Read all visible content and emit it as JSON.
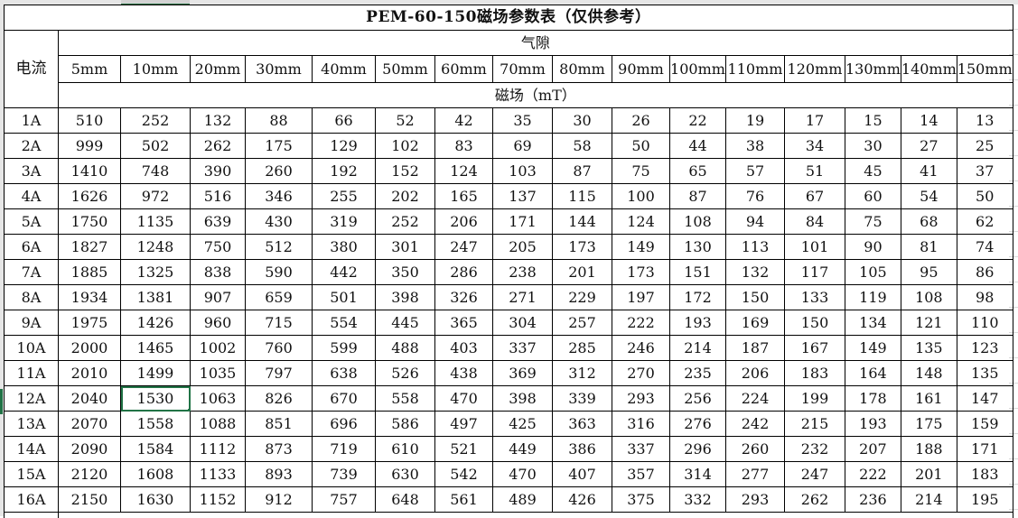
{
  "title": "PEM-60-150磁场参数表（仅供参考）",
  "current_label": "电流",
  "gap_label": "气隙",
  "field_label": "磁场（mT）",
  "selected_cell": {
    "row": "12A",
    "column": "10mm"
  },
  "accent_color": "#217346",
  "columns": [
    "5mm",
    "10mm",
    "20mm",
    "30mm",
    "40mm",
    "50mm",
    "60mm",
    "70mm",
    "80mm",
    "90mm",
    "100mm",
    "110mm",
    "120mm",
    "130mm",
    "140mm",
    "150mm"
  ],
  "rows": [
    {
      "label": "1A",
      "values": [
        510,
        252,
        132,
        88,
        66,
        52,
        42,
        35,
        30,
        26,
        22,
        19,
        17,
        15,
        14,
        13
      ]
    },
    {
      "label": "2A",
      "values": [
        999,
        502,
        262,
        175,
        129,
        102,
        83,
        69,
        58,
        50,
        44,
        38,
        34,
        30,
        27,
        25
      ]
    },
    {
      "label": "3A",
      "values": [
        1410,
        748,
        390,
        260,
        192,
        152,
        124,
        103,
        87,
        75,
        65,
        57,
        51,
        45,
        41,
        37
      ]
    },
    {
      "label": "4A",
      "values": [
        1626,
        972,
        516,
        346,
        255,
        202,
        165,
        137,
        115,
        100,
        87,
        76,
        67,
        60,
        54,
        50
      ]
    },
    {
      "label": "5A",
      "values": [
        1750,
        1135,
        639,
        430,
        319,
        252,
        206,
        171,
        144,
        124,
        108,
        94,
        84,
        75,
        68,
        62
      ]
    },
    {
      "label": "6A",
      "values": [
        1827,
        1248,
        750,
        512,
        380,
        301,
        247,
        205,
        173,
        149,
        130,
        113,
        101,
        90,
        81,
        74
      ]
    },
    {
      "label": "7A",
      "values": [
        1885,
        1325,
        838,
        590,
        442,
        350,
        286,
        238,
        201,
        173,
        151,
        132,
        117,
        105,
        95,
        86
      ]
    },
    {
      "label": "8A",
      "values": [
        1934,
        1381,
        907,
        659,
        501,
        398,
        326,
        271,
        229,
        197,
        172,
        150,
        133,
        119,
        108,
        98
      ]
    },
    {
      "label": "9A",
      "values": [
        1975,
        1426,
        960,
        715,
        554,
        445,
        365,
        304,
        257,
        222,
        193,
        169,
        150,
        134,
        121,
        110
      ]
    },
    {
      "label": "10A",
      "values": [
        2000,
        1465,
        1002,
        760,
        599,
        488,
        403,
        337,
        285,
        246,
        214,
        187,
        167,
        149,
        135,
        123
      ]
    },
    {
      "label": "11A",
      "values": [
        2010,
        1499,
        1035,
        797,
        638,
        526,
        438,
        369,
        312,
        270,
        235,
        206,
        183,
        164,
        148,
        135
      ]
    },
    {
      "label": "12A",
      "values": [
        2040,
        1530,
        1063,
        826,
        670,
        558,
        470,
        398,
        339,
        293,
        256,
        224,
        199,
        178,
        161,
        147
      ]
    },
    {
      "label": "13A",
      "values": [
        2070,
        1558,
        1088,
        851,
        696,
        586,
        497,
        425,
        363,
        316,
        276,
        242,
        215,
        193,
        175,
        159
      ]
    },
    {
      "label": "14A",
      "values": [
        2090,
        1584,
        1112,
        873,
        719,
        610,
        521,
        449,
        386,
        337,
        296,
        260,
        232,
        207,
        188,
        171
      ]
    },
    {
      "label": "15A",
      "values": [
        2120,
        1608,
        1133,
        893,
        739,
        630,
        542,
        470,
        407,
        357,
        314,
        277,
        247,
        222,
        201,
        183
      ]
    },
    {
      "label": "16A",
      "values": [
        2150,
        1630,
        1152,
        912,
        757,
        648,
        561,
        489,
        426,
        375,
        332,
        293,
        262,
        236,
        214,
        195
      ]
    }
  ]
}
